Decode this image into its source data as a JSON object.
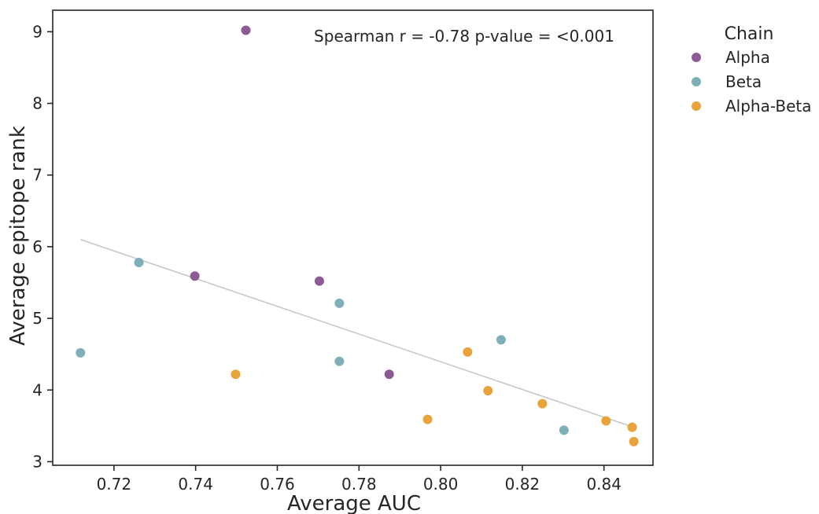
{
  "chart_data": {
    "type": "scatter",
    "xlabel": "Average AUC",
    "ylabel": "Average epitope rank",
    "xlim": [
      0.705,
      0.852
    ],
    "ylim": [
      2.95,
      9.3
    ],
    "xticks": [
      0.72,
      0.74,
      0.76,
      0.78,
      0.8,
      0.82,
      0.84
    ],
    "xtick_labels": [
      "0.72",
      "0.74",
      "0.76",
      "0.78",
      "0.80",
      "0.82",
      "0.84"
    ],
    "yticks": [
      3,
      4,
      5,
      6,
      7,
      8,
      9
    ],
    "ytick_labels": [
      "3",
      "4",
      "5",
      "6",
      "7",
      "8",
      "9"
    ],
    "annotation": "Spearman r = -0.78   p-value = <0.001",
    "legend": {
      "title": "Chain",
      "placement": "outside-right"
    },
    "grid": false,
    "series": [
      {
        "name": "Alpha",
        "color": "#8c5b94",
        "points": [
          {
            "x": 0.7523,
            "y": 9.02
          },
          {
            "x": 0.7398,
            "y": 5.59
          },
          {
            "x": 0.7703,
            "y": 5.52
          },
          {
            "x": 0.7874,
            "y": 4.22
          }
        ]
      },
      {
        "name": "Beta",
        "color": "#7fafb9",
        "points": [
          {
            "x": 0.7118,
            "y": 4.52
          },
          {
            "x": 0.7261,
            "y": 5.78
          },
          {
            "x": 0.7752,
            "y": 5.21
          },
          {
            "x": 0.7752,
            "y": 4.4
          },
          {
            "x": 0.8148,
            "y": 4.7
          },
          {
            "x": 0.8302,
            "y": 3.44
          }
        ]
      },
      {
        "name": "Alpha-Beta",
        "color": "#e8a33b",
        "points": [
          {
            "x": 0.7498,
            "y": 4.22
          },
          {
            "x": 0.7968,
            "y": 3.59
          },
          {
            "x": 0.8066,
            "y": 4.53
          },
          {
            "x": 0.8116,
            "y": 3.99
          },
          {
            "x": 0.8249,
            "y": 3.81
          },
          {
            "x": 0.8405,
            "y": 3.57
          },
          {
            "x": 0.8469,
            "y": 3.48
          },
          {
            "x": 0.8473,
            "y": 3.28
          }
        ]
      }
    ],
    "trendline": {
      "color": "#c8c8c8",
      "start": {
        "x": 0.7118,
        "y": 6.1
      },
      "end": {
        "x": 0.8473,
        "y": 3.48
      }
    }
  }
}
